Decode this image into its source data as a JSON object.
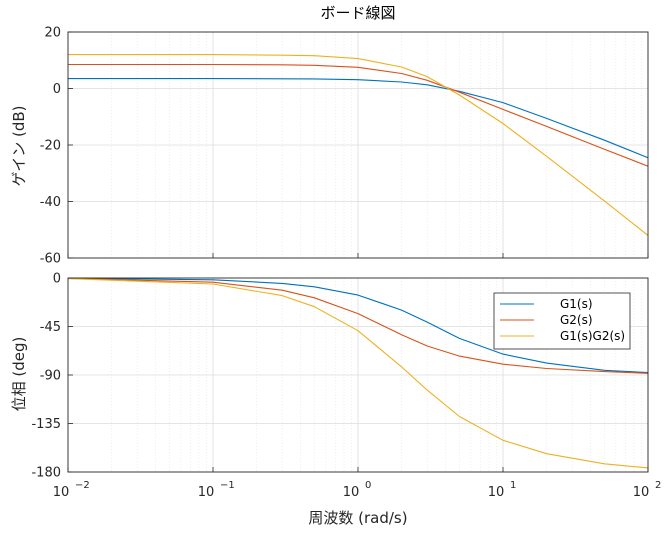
{
  "chart_data": [
    {
      "type": "line",
      "title": "ボード線図",
      "xlabel": "",
      "ylabel": "ゲイン (dB)",
      "xscale": "log",
      "xlim": [
        0.01,
        100
      ],
      "ylim": [
        -60,
        20
      ],
      "yticks": [
        "20",
        "0",
        "-20",
        "-40",
        "-60"
      ],
      "grid": true,
      "series": [
        {
          "name": "G1(s)",
          "color": "#0072BD",
          "x": [
            0.01,
            0.1,
            0.5,
            1,
            2,
            3,
            5,
            10,
            20,
            50,
            100
          ],
          "y": [
            3.5,
            3.5,
            3.4,
            3.1,
            2.3,
            1.3,
            -1.0,
            -5.0,
            -10.6,
            -18.3,
            -24.5
          ]
        },
        {
          "name": "G2(s)",
          "color": "#D95319",
          "x": [
            0.01,
            0.1,
            0.3,
            0.5,
            1,
            2,
            3,
            5,
            10,
            20,
            50,
            100
          ],
          "y": [
            8.5,
            8.5,
            8.4,
            8.2,
            7.5,
            5.3,
            2.9,
            -1.3,
            -7.4,
            -13.4,
            -21.5,
            -27.5
          ]
        },
        {
          "name": "G1(s)G2(s)",
          "color": "#EDB120",
          "x": [
            0.01,
            0.1,
            0.3,
            0.5,
            1,
            2,
            3,
            5,
            10,
            20,
            50,
            100
          ],
          "y": [
            12.0,
            12.0,
            11.8,
            11.6,
            10.6,
            7.6,
            4.2,
            -2.3,
            -12.4,
            -24.0,
            -39.8,
            -52.0
          ]
        }
      ]
    },
    {
      "type": "line",
      "xlabel": "周波数  (rad/s)",
      "ylabel": "位相 (deg)",
      "xscale": "log",
      "xlim": [
        0.01,
        100
      ],
      "ylim": [
        -180,
        0
      ],
      "xticks": [
        {
          "base": "10",
          "exp": "−2"
        },
        {
          "base": "10",
          "exp": "−1"
        },
        {
          "base": "10",
          "exp": "0"
        },
        {
          "base": "10",
          "exp": "1"
        },
        {
          "base": "10",
          "exp": "2"
        }
      ],
      "yticks": [
        "0",
        "-45",
        "-90",
        "-135",
        "-180"
      ],
      "grid": true,
      "legend_position": "top-right",
      "series": [
        {
          "name": "G1(s)",
          "color": "#0072BD",
          "x": [
            0.01,
            0.1,
            0.3,
            0.5,
            1,
            2,
            3,
            5,
            10,
            20,
            50,
            100
          ],
          "y": [
            -0.2,
            -1.7,
            -5.0,
            -8.2,
            -15.9,
            -29.8,
            -40.9,
            -56.0,
            -70.6,
            -79.0,
            -85.6,
            -87.8
          ]
        },
        {
          "name": "G2(s)",
          "color": "#D95319",
          "x": [
            0.01,
            0.1,
            0.3,
            0.5,
            1,
            2,
            3,
            5,
            10,
            20,
            50,
            100
          ],
          "y": [
            -0.4,
            -3.9,
            -11.3,
            -18.4,
            -33.0,
            -52.7,
            -63.1,
            -72.5,
            -80.0,
            -84.0,
            -86.8,
            -88.4
          ]
        },
        {
          "name": "G1(s)G2(s)",
          "color": "#EDB120",
          "x": [
            0.01,
            0.1,
            0.3,
            0.5,
            1,
            2,
            3,
            5,
            10,
            20,
            50,
            100
          ],
          "y": [
            -0.6,
            -5.6,
            -16.3,
            -26.6,
            -48.9,
            -82.5,
            -104.0,
            -128.5,
            -150.6,
            -163.0,
            -172.4,
            -176.2
          ]
        }
      ]
    }
  ]
}
